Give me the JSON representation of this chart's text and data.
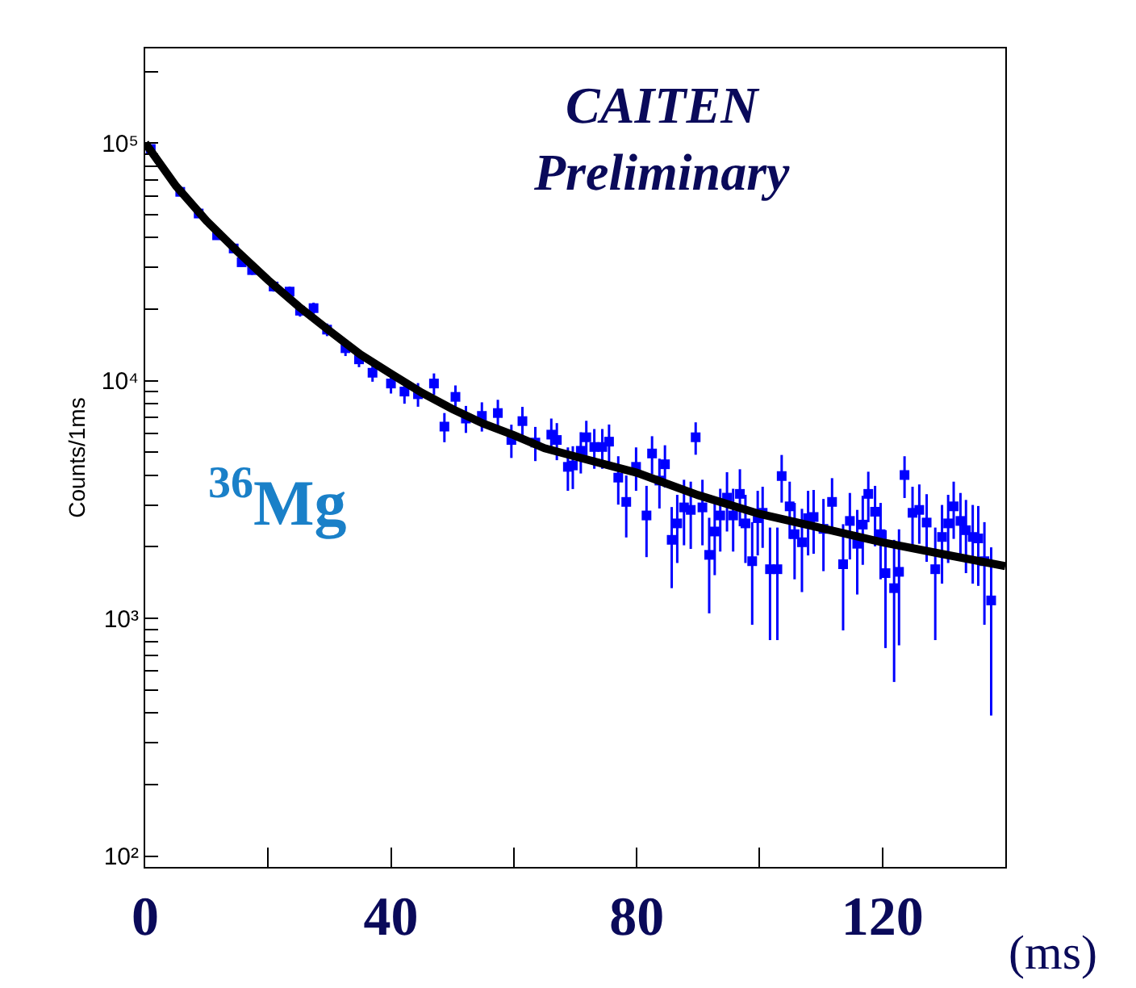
{
  "chart_data": {
    "type": "scatter",
    "xlabel": "(ms)",
    "ylabel": "Counts/1ms",
    "annotations": [
      "CAITEN Preliminary",
      "$^{36}$Mg"
    ],
    "log": "y",
    "marker": "square",
    "xlim": [
      0,
      140
    ],
    "xticks": [
      0,
      {
        "value": 20,
        "label": null
      },
      40,
      {
        "value": 60,
        "label": null
      },
      80,
      {
        "value": 100,
        "label": null
      },
      120
    ],
    "ylim": [
      90,
      250000
    ],
    "yticks": [
      {
        "value": 100,
        "label": "10²"
      },
      {
        "value": 200,
        "label": null
      },
      {
        "value": 300,
        "label": null
      },
      {
        "value": 400,
        "label": null
      },
      {
        "value": 500,
        "label": null
      },
      {
        "value": 600,
        "label": null
      },
      {
        "value": 700,
        "label": null
      },
      {
        "value": 800,
        "label": null
      },
      {
        "value": 900,
        "label": null
      },
      {
        "value": 1000,
        "label": "10³"
      },
      {
        "value": 2000,
        "label": null
      },
      {
        "value": 3000,
        "label": null
      },
      {
        "value": 4000,
        "label": null
      },
      {
        "value": 5000,
        "label": null
      },
      {
        "value": 6000,
        "label": null
      },
      {
        "value": 7000,
        "label": null
      },
      {
        "value": 8000,
        "label": null
      },
      {
        "value": 9000,
        "label": null
      },
      {
        "value": 10000,
        "label": "10⁴"
      },
      {
        "value": 20000,
        "label": null
      },
      {
        "value": 30000,
        "label": null
      },
      {
        "value": 40000,
        "label": null
      },
      {
        "value": 50000,
        "label": null
      },
      {
        "value": 60000,
        "label": null
      },
      {
        "value": 70000,
        "label": null
      },
      {
        "value": 80000,
        "label": null
      },
      {
        "value": 90000,
        "label": null
      },
      {
        "value": 100000,
        "label": "10⁵"
      },
      {
        "value": 200000,
        "label": null
      }
    ],
    "series": [
      {
        "color": "#0000ff",
        "x": [
          0.9,
          5.7,
          8.7,
          11.7,
          14.4,
          15.7,
          17.4,
          20.9,
          23.5,
          25.2,
          27.4,
          29.6,
          32.6,
          34.8,
          37.0,
          40.0,
          42.2,
          44.4,
          47.0,
          48.7,
          50.5,
          52.2,
          54.8,
          57.4,
          59.6,
          61.4,
          63.5,
          66.1,
          67.0,
          68.8,
          69.6,
          70.9,
          71.8,
          73.1,
          74.4,
          75.5,
          77.0,
          78.3,
          79.9,
          81.6,
          82.5,
          83.7,
          84.6,
          85.7,
          86.6,
          87.7,
          88.8,
          89.6,
          90.7,
          91.8,
          92.7,
          93.6,
          94.7,
          95.7,
          96.8,
          97.7,
          98.8,
          99.7,
          100.5,
          101.7,
          102.9,
          103.6,
          104.9,
          105.7,
          106.9,
          107.9,
          108.8,
          110.4,
          111.8,
          113.6,
          114.7,
          115.9,
          116.8,
          117.7,
          118.8,
          119.7,
          120.5,
          121.9,
          122.7,
          123.6,
          124.9,
          126.0,
          127.2,
          128.6,
          129.7,
          130.7,
          131.6,
          132.7,
          133.6,
          134.7,
          135.6,
          136.6,
          137.7
        ],
        "values": [
          94400,
          62300,
          50500,
          40900,
          36000,
          31500,
          29200,
          24900,
          23700,
          19700,
          20200,
          16400,
          13700,
          12300,
          10800,
          9730,
          9000,
          8770,
          9730,
          6410,
          8550,
          6930,
          7110,
          7310,
          5630,
          6760,
          5490,
          5930,
          5630,
          4340,
          4400,
          5070,
          5780,
          5260,
          5260,
          5540,
          3910,
          3090,
          4340,
          2710,
          4940,
          3800,
          4450,
          2140,
          2510,
          2930,
          2860,
          5780,
          2930,
          1850,
          2320,
          2710,
          3220,
          2710,
          3340,
          2510,
          1740,
          2640,
          2780,
          1610,
          1610,
          3970,
          2960,
          2260,
          2090,
          2640,
          2670,
          2380,
          3090,
          1690,
          2570,
          2060,
          2480,
          3340,
          2810,
          2260,
          1550,
          1340,
          1570,
          4010,
          2780,
          2860,
          2530,
          1610,
          2200,
          2510,
          2960,
          2570,
          2350,
          2200,
          2170,
          1740,
          1190
        ],
        "errors": [
          2000,
          1800,
          1600,
          1500,
          1400,
          1300,
          1300,
          1200,
          1200,
          1100,
          1100,
          1000,
          1000,
          900,
          900,
          900,
          1000,
          1000,
          1000,
          900,
          1000,
          900,
          1000,
          1000,
          900,
          1000,
          900,
          1000,
          1000,
          900,
          900,
          1000,
          1000,
          1000,
          1000,
          1000,
          900,
          900,
          900,
          900,
          900,
          900,
          900,
          800,
          800,
          900,
          900,
          900,
          900,
          800,
          800,
          800,
          900,
          800,
          900,
          800,
          800,
          800,
          800,
          800,
          800,
          900,
          800,
          800,
          800,
          800,
          800,
          800,
          800,
          800,
          800,
          800,
          800,
          800,
          800,
          800,
          800,
          800,
          800,
          800,
          800,
          800,
          800,
          800,
          800,
          800,
          800,
          800,
          800,
          800,
          800,
          800,
          800
        ]
      },
      {
        "type": "line",
        "color": "#000000",
        "marker": "none",
        "x": [
          0,
          5,
          10,
          15,
          20,
          25,
          30,
          35,
          40,
          45,
          50,
          55,
          60,
          65,
          70,
          80,
          90,
          100,
          110,
          120,
          130,
          140
        ],
        "values": [
          100000,
          66000,
          47000,
          35000,
          26500,
          20500,
          16200,
          12900,
          10700,
          8900,
          7600,
          6600,
          5900,
          5200,
          4800,
          4100,
          3300,
          2750,
          2400,
          2090,
          1860,
          1660
        ]
      }
    ]
  }
}
